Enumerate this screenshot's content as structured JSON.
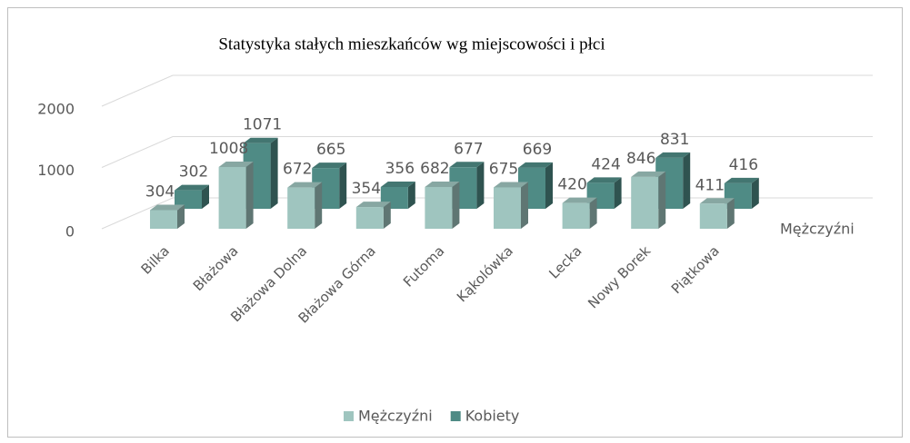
{
  "chart_data": {
    "type": "bar3d",
    "title": "Statystyka stałych mieszkańców wg miejscowości i płci",
    "categories": [
      "Bilka",
      "Błażowa",
      "Błażowa Dolna",
      "Błażowa Górna",
      "Futoma",
      "Kąkolówka",
      "Lecka",
      "Nowy Borek",
      "Piątkowa"
    ],
    "series": [
      {
        "name": "Mężczyźni",
        "color": "#9fc5bf",
        "values": [
          304,
          1008,
          672,
          354,
          682,
          675,
          420,
          846,
          411
        ]
      },
      {
        "name": "Kobiety",
        "color": "#4f8b85",
        "values": [
          302,
          1071,
          665,
          356,
          677,
          669,
          424,
          831,
          416
        ]
      }
    ],
    "ylim": [
      0,
      2000
    ],
    "yticks": [
      0,
      1000,
      2000
    ],
    "grid": true,
    "legend": "bottom"
  }
}
